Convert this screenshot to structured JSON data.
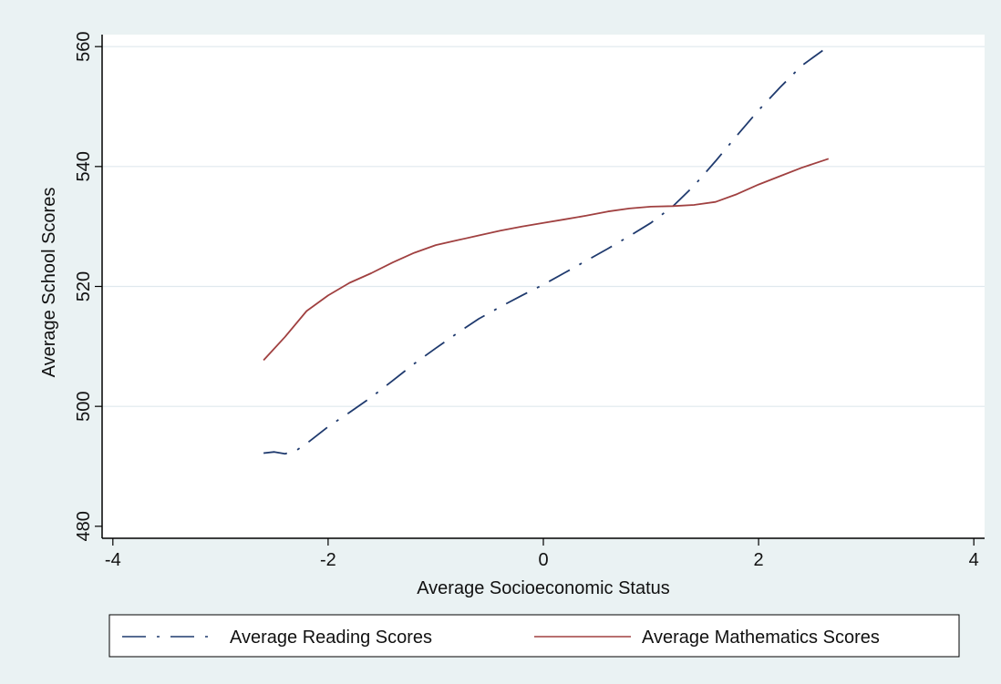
{
  "chart_data": {
    "type": "line",
    "title": "",
    "xlabel": "Average Socioeconomic Status",
    "ylabel": "Average School Scores",
    "xlim": [
      -4.1,
      4.1
    ],
    "ylim": [
      478,
      562
    ],
    "xticks": [
      -4,
      -2,
      0,
      2,
      4
    ],
    "yticks": [
      480,
      500,
      520,
      540,
      560
    ],
    "x_tick_labels": [
      "-4",
      "-2",
      "0",
      "2",
      "4"
    ],
    "y_tick_labels": [
      "480",
      "500",
      "520",
      "540",
      "560"
    ],
    "grid": "horizontal",
    "legend_position": "bottom",
    "series": [
      {
        "name": "Average Reading Scores",
        "color": "#1f3a6e",
        "style": "long-dash-dot",
        "x": [
          -2.6,
          -2.5,
          -2.4,
          -2.3,
          -2.2,
          -2.0,
          -1.8,
          -1.6,
          -1.4,
          -1.2,
          -1.0,
          -0.8,
          -0.6,
          -0.4,
          -0.2,
          0.0,
          0.2,
          0.4,
          0.6,
          0.8,
          1.0,
          1.2,
          1.4,
          1.6,
          1.8,
          2.0,
          2.2,
          2.4,
          2.6,
          2.65
        ],
        "y": [
          492.2,
          492.4,
          492.1,
          492.6,
          493.8,
          496.6,
          499.0,
          501.5,
          504.3,
          507.1,
          509.7,
          512.2,
          514.6,
          516.6,
          518.5,
          520.3,
          522.3,
          524.3,
          526.3,
          528.4,
          530.6,
          533.3,
          536.8,
          540.9,
          545.2,
          549.4,
          553.2,
          556.8,
          559.4,
          559.8
        ]
      },
      {
        "name": "Average Mathematics Scores",
        "color": "#a04040",
        "style": "solid",
        "x": [
          -2.6,
          -2.4,
          -2.2,
          -2.0,
          -1.8,
          -1.6,
          -1.4,
          -1.2,
          -1.0,
          -0.8,
          -0.6,
          -0.4,
          -0.2,
          0.0,
          0.2,
          0.4,
          0.6,
          0.8,
          1.0,
          1.2,
          1.4,
          1.6,
          1.8,
          2.0,
          2.2,
          2.4,
          2.6,
          2.65
        ],
        "y": [
          507.7,
          511.6,
          515.9,
          518.5,
          520.6,
          522.2,
          524.0,
          525.6,
          526.9,
          527.7,
          528.5,
          529.3,
          530.0,
          530.6,
          531.2,
          531.8,
          532.5,
          533.0,
          533.3,
          533.4,
          533.6,
          534.1,
          535.4,
          537.0,
          538.4,
          539.8,
          541.0,
          541.3
        ]
      }
    ]
  }
}
